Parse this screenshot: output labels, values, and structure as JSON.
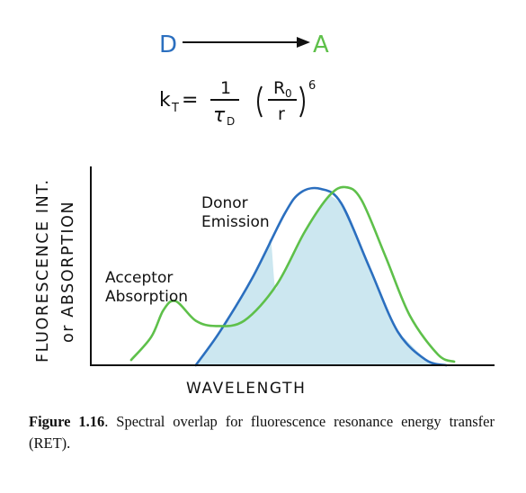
{
  "equation": {
    "donor": "D",
    "acceptor": "A",
    "lhs": "k",
    "lhs_sub": "T",
    "equals": "=",
    "numerator": "1",
    "tau": "τ",
    "tau_sub": "D",
    "ratio_num": "R",
    "ratio_num_sub": "0",
    "ratio_den": "r",
    "exponent": "6"
  },
  "chart_data": {
    "type": "line",
    "ylabel_line1": "FLUORESCENCE INT.",
    "ylabel_line2": "or ABSORPTION",
    "xlabel": "WAVELENGTH",
    "series": [
      {
        "name": "Donor Emission",
        "name_line1": "Donor",
        "name_line2": "Emission",
        "color": "#2b6fbf",
        "x": [
          0.26,
          0.32,
          0.4,
          0.48,
          0.52,
          0.57,
          0.62,
          0.69,
          0.76,
          0.83,
          0.88
        ],
        "y": [
          0.0,
          0.19,
          0.49,
          0.85,
          0.97,
          0.99,
          0.91,
          0.55,
          0.19,
          0.03,
          0.0
        ]
      },
      {
        "name": "Acceptor Absorption",
        "name_line1": "Acceptor",
        "name_line2": "Absorption",
        "color": "#5ec04a",
        "x": [
          0.1,
          0.15,
          0.18,
          0.21,
          0.26,
          0.31,
          0.38,
          0.46,
          0.53,
          0.59,
          0.63,
          0.67,
          0.73,
          0.79,
          0.86,
          0.9
        ],
        "y": [
          0.03,
          0.16,
          0.31,
          0.36,
          0.25,
          0.22,
          0.25,
          0.45,
          0.75,
          0.95,
          1.0,
          0.93,
          0.61,
          0.28,
          0.06,
          0.02
        ]
      }
    ],
    "overlap_fill": "#cce7f0"
  },
  "caption": {
    "label": "Figure 1.16",
    "text": ". Spectral overlap for fluorescence resonance energy transfer (RET)."
  }
}
